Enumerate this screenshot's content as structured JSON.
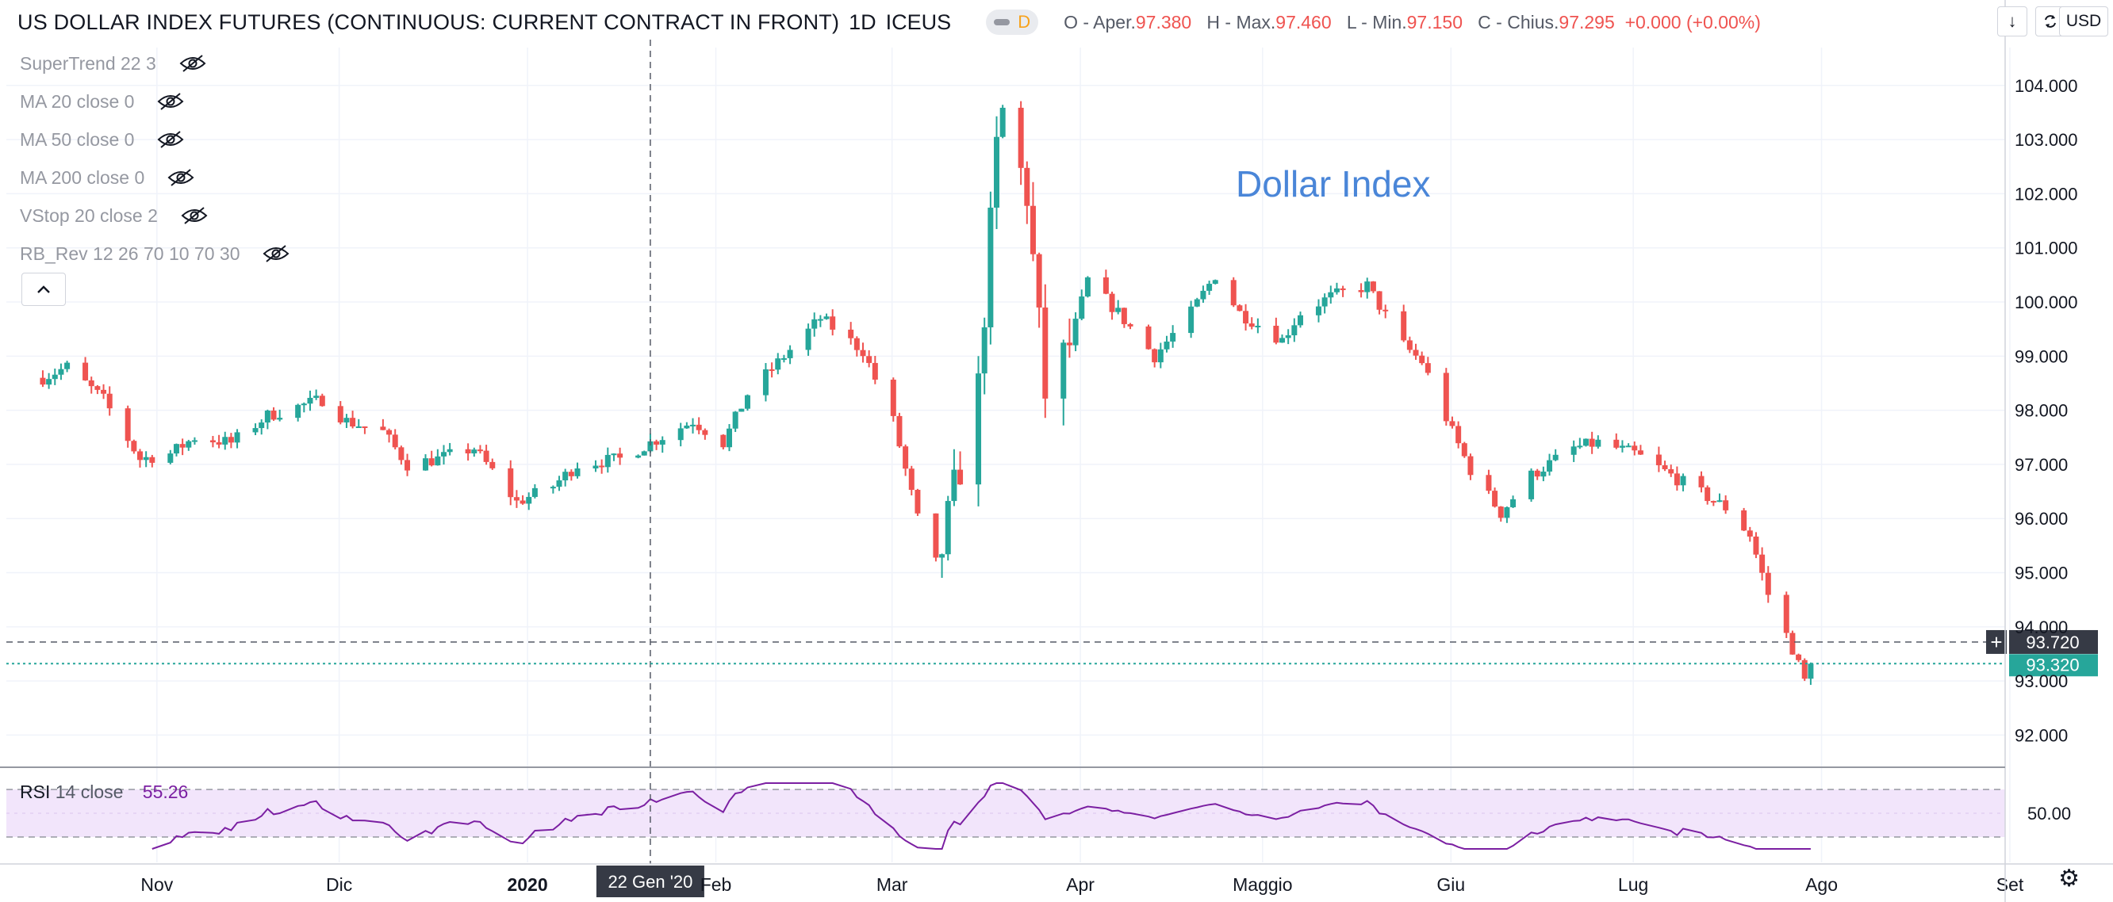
{
  "header": {
    "symbol": "US DOLLAR INDEX FUTURES (CONTINUOUS: CURRENT CONTRACT IN FRONT)",
    "interval": "1D",
    "exchange": "ICEUS",
    "pill_letter": "D",
    "ohlc": {
      "o_label": "O - Aper.",
      "o_value": "97.380",
      "h_label": "H - Max.",
      "h_value": "97.460",
      "l_label": "L - Min.",
      "l_value": "97.150",
      "c_label": "C - Chius.",
      "c_value": "97.295",
      "change": "+0.000 (+0.00%)"
    },
    "download_icon": "download-icon",
    "sync_icon": "sync-icon",
    "currency": "USD"
  },
  "indicators": [
    {
      "label": "SuperTrend 22 3",
      "icon": "eye-hidden-icon"
    },
    {
      "label": "MA 20 close 0",
      "icon": "eye-hidden-icon"
    },
    {
      "label": "MA 50 close 0",
      "icon": "eye-hidden-icon"
    },
    {
      "label": "MA 200 close 0",
      "icon": "eye-hidden-icon"
    },
    {
      "label": "VStop 20 close 2",
      "icon": "eye-hidden-icon"
    },
    {
      "label": "RB_Rev 12 26 70 10 70 30",
      "icon": "eye-hidden-icon"
    }
  ],
  "collapse_icon": "chevron-up-icon",
  "rsi": {
    "name": "RSI",
    "params": "14 close",
    "value": "55.26"
  },
  "crosshair": {
    "date_label": "22 Gen '20",
    "price_label": "93.720"
  },
  "last_price_label": "93.320",
  "settings_icon": "gear-icon",
  "colors": {
    "up": "#26a69a",
    "down": "#ef5350",
    "rsi": "#7b1fa2",
    "rsi_band": "#f2e5fb",
    "accent_text": "#4a86d8"
  },
  "chart_data": [
    {
      "type": "candlestick",
      "title": "Dollar Index",
      "x_labels": [
        "Nov",
        "Dic",
        "2020",
        "Feb",
        "Mar",
        "Apr",
        "Maggio",
        "Giu",
        "Lug",
        "Ago",
        "Set"
      ],
      "y_ticks": [
        "92.000",
        "93.000",
        "94.000",
        "95.000",
        "96.000",
        "97.000",
        "98.000",
        "99.000",
        "100.000",
        "101.000",
        "102.000",
        "103.000",
        "104.000"
      ],
      "y_top_partial_label": "0",
      "ylim": [
        91.45,
        104.7
      ],
      "close_waypoints": [
        [
          "2019-10-14",
          98.6
        ],
        [
          "2019-10-18",
          98.8
        ],
        [
          "2019-10-24",
          98.2
        ],
        [
          "2019-10-30",
          97.1
        ],
        [
          "2019-11-04",
          97.2
        ],
        [
          "2019-11-08",
          97.5
        ],
        [
          "2019-11-14",
          97.4
        ],
        [
          "2019-11-20",
          97.9
        ],
        [
          "2019-11-26",
          98.1
        ],
        [
          "2019-11-29",
          98.2
        ],
        [
          "2019-12-03",
          97.8
        ],
        [
          "2019-12-09",
          97.6
        ],
        [
          "2019-12-13",
          97.0
        ],
        [
          "2019-12-18",
          97.1
        ],
        [
          "2019-12-24",
          97.3
        ],
        [
          "2019-12-31",
          96.3
        ],
        [
          "2020-01-06",
          96.6
        ],
        [
          "2020-01-10",
          97.0
        ],
        [
          "2020-01-17",
          97.1
        ],
        [
          "2020-01-22",
          97.4
        ],
        [
          "2020-01-29",
          97.8
        ],
        [
          "2020-02-03",
          97.4
        ],
        [
          "2020-02-07",
          98.3
        ],
        [
          "2020-02-13",
          99.0
        ],
        [
          "2020-02-19",
          99.7
        ],
        [
          "2020-02-26",
          99.1
        ],
        [
          "2020-03-02",
          97.8
        ],
        [
          "2020-03-06",
          96.0
        ],
        [
          "2020-03-09",
          94.9
        ],
        [
          "2020-03-12",
          96.5
        ],
        [
          "2020-03-16",
          98.4
        ],
        [
          "2020-03-19",
          102.8
        ],
        [
          "2020-03-20",
          103.5
        ],
        [
          "2020-03-24",
          102.0
        ],
        [
          "2020-03-27",
          98.3
        ],
        [
          "2020-03-31",
          99.2
        ],
        [
          "2020-04-03",
          100.4
        ],
        [
          "2020-04-08",
          99.8
        ],
        [
          "2020-04-14",
          99.0
        ],
        [
          "2020-04-20",
          99.8
        ],
        [
          "2020-04-24",
          100.5
        ],
        [
          "2020-04-28",
          99.8
        ],
        [
          "2020-05-05",
          99.3
        ],
        [
          "2020-05-08",
          99.8
        ],
        [
          "2020-05-13",
          100.1
        ],
        [
          "2020-05-19",
          100.3
        ],
        [
          "2020-05-25",
          99.2
        ],
        [
          "2020-05-28",
          98.9
        ],
        [
          "2020-06-02",
          97.6
        ],
        [
          "2020-06-05",
          96.9
        ],
        [
          "2020-06-10",
          96.1
        ],
        [
          "2020-06-15",
          96.8
        ],
        [
          "2020-06-22",
          97.3
        ],
        [
          "2020-06-26",
          97.4
        ],
        [
          "2020-07-02",
          97.2
        ],
        [
          "2020-07-08",
          96.8
        ],
        [
          "2020-07-14",
          96.4
        ],
        [
          "2020-07-17",
          96.2
        ],
        [
          "2020-07-21",
          95.7
        ],
        [
          "2020-07-24",
          94.6
        ],
        [
          "2020-07-28",
          93.6
        ],
        [
          "2020-07-30",
          93.0
        ],
        [
          "2020-07-31",
          93.32
        ]
      ],
      "reference_lines": {
        "crosshair_price": 93.72,
        "last_price": 93.32
      }
    },
    {
      "type": "line",
      "title": "RSI 14 close",
      "y_ticks": [
        "50.00"
      ],
      "bands": [
        30,
        70
      ],
      "last_value": 55.26
    }
  ]
}
